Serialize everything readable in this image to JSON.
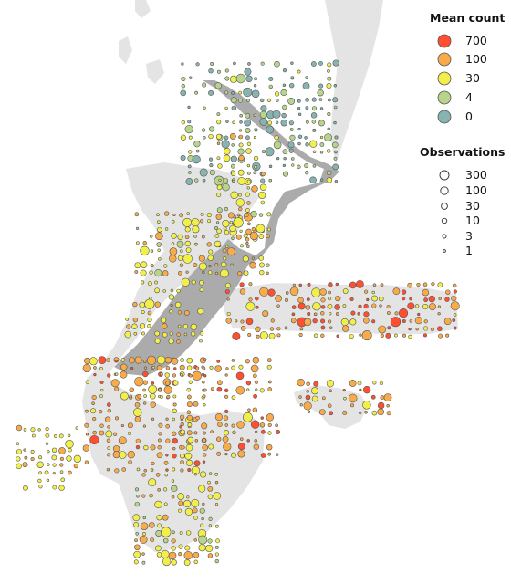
{
  "legend_mean_count": {
    "title": "Mean count",
    "items": [
      {
        "label": "700",
        "color": "#ff4f30"
      },
      {
        "label": "100",
        "color": "#f9ab4a"
      },
      {
        "label": "30",
        "color": "#f2ef4a"
      },
      {
        "label": "4",
        "color": "#b8d48a"
      },
      {
        "label": "0",
        "color": "#87b3b0"
      }
    ]
  },
  "legend_observations": {
    "title": "Observations",
    "items": [
      {
        "label": "300"
      },
      {
        "label": "100"
      },
      {
        "label": "30"
      },
      {
        "label": "10"
      },
      {
        "label": "3"
      },
      {
        "label": "1"
      }
    ]
  },
  "map_colors": {
    "background_land": "#e4e4e4",
    "mainland_land": "#ababab",
    "marker_stroke": "#555555"
  }
}
